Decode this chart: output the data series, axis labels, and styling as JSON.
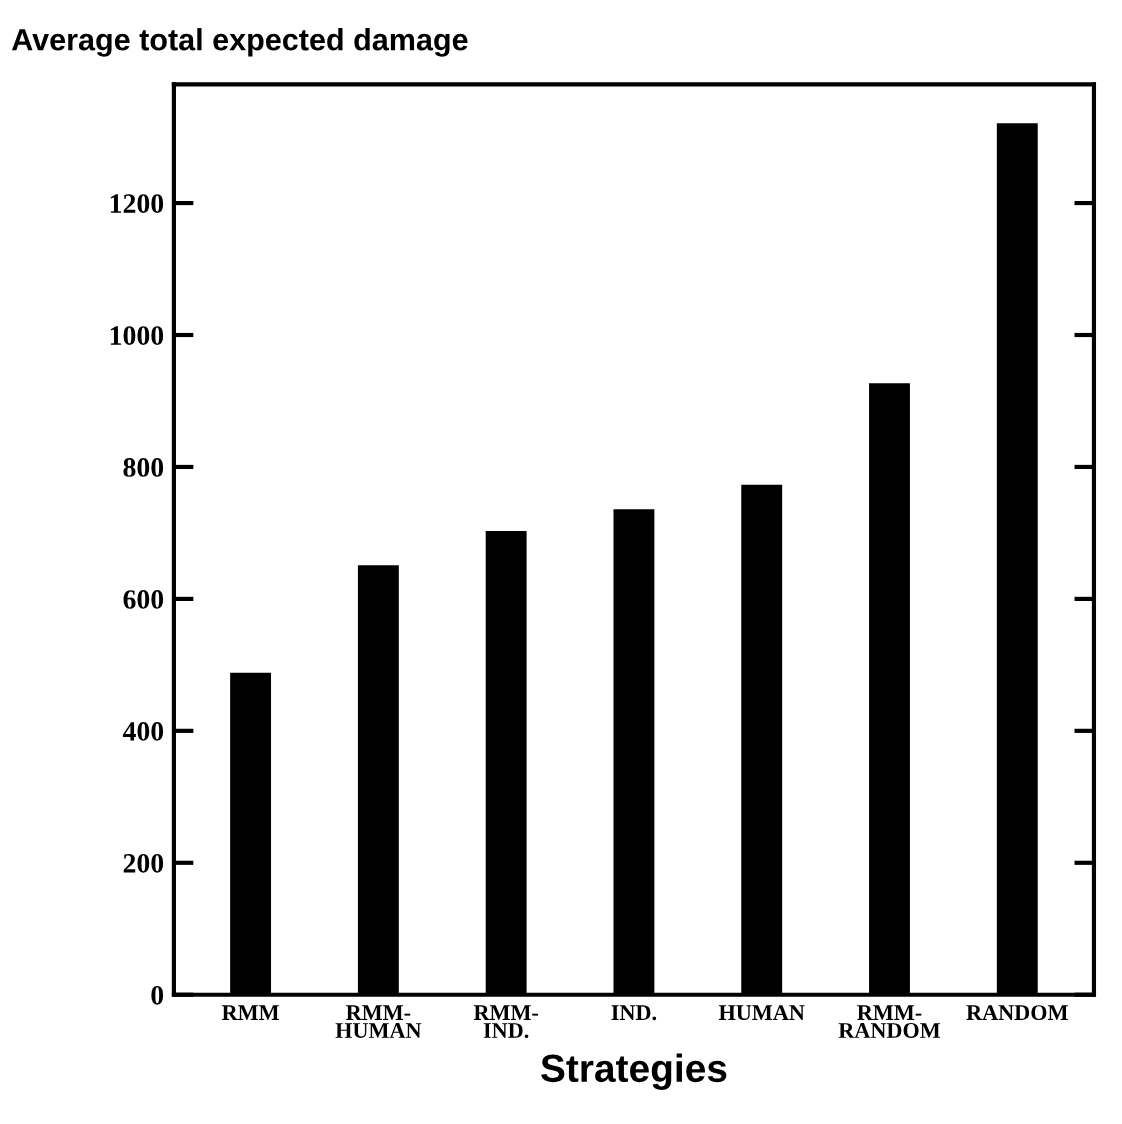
{
  "chart_data": {
    "type": "bar",
    "title": "Average total expected damage",
    "xlabel": "Strategies",
    "categories": [
      "RMM",
      "RMM-\nHUMAN",
      "RMM-\nIND.",
      "IND.",
      "HUMAN",
      "RMM-\nRANDOM",
      "RANDOM"
    ],
    "values": [
      488,
      651,
      703,
      736,
      773,
      927,
      1321
    ],
    "color": "#000000",
    "ylim": [
      0,
      1380
    ],
    "yticks": [
      0,
      200,
      400,
      600,
      800,
      1000,
      1200
    ],
    "grid": false
  }
}
